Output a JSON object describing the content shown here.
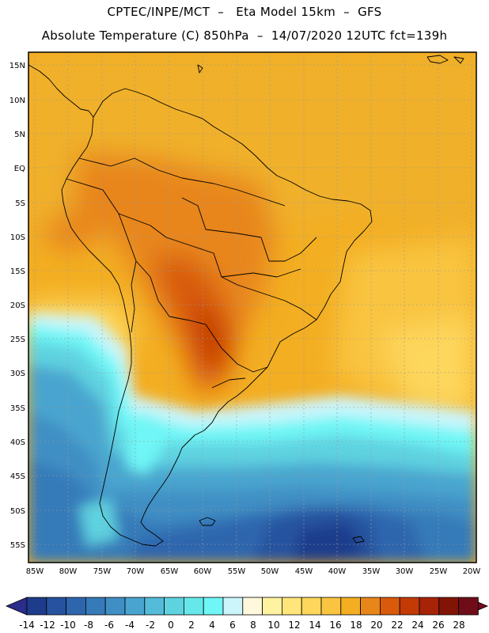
{
  "header": {
    "line1": "CPTEC/INPE/MCT  –   Eta Model 15km  –  GFS",
    "line2": "Absolute Temperature (C) 850hPa  –  14/07/2020 12UTC fct=139h"
  },
  "axes": {
    "lat_labels": [
      "15N",
      "10N",
      "5N",
      "EQ",
      "5S",
      "10S",
      "15S",
      "20S",
      "25S",
      "30S",
      "35S",
      "40S",
      "45S",
      "50S",
      "55S"
    ],
    "lon_labels": [
      "85W",
      "80W",
      "75W",
      "70W",
      "65W",
      "60W",
      "55W",
      "50W",
      "45W",
      "40W",
      "35W",
      "30W",
      "25W",
      "20W"
    ]
  },
  "colorbar": {
    "labels": [
      "-14",
      "-12",
      "-10",
      "-8",
      "-6",
      "-4",
      "-2",
      "0",
      "2",
      "4",
      "6",
      "8",
      "10",
      "12",
      "14",
      "16",
      "18",
      "20",
      "22",
      "24",
      "26",
      "28"
    ],
    "colors": [
      "#1e3c8c",
      "#27529f",
      "#2e66ae",
      "#367ab9",
      "#3f8fc4",
      "#49a5cf",
      "#54bbd8",
      "#5fd2e0",
      "#66e8ea",
      "#6ff6f6",
      "#ccf5fb",
      "#fff8dc",
      "#fff2a0",
      "#ffe57a",
      "#fdd65b",
      "#f9c43f",
      "#f3ae22",
      "#e8861a",
      "#d85a0a",
      "#c33a05",
      "#a62308",
      "#821406",
      "#6e0d18"
    ],
    "min_color": "#2a2d8a",
    "max_color": "#7a0a20"
  },
  "colors": {
    "land_border": "#000000",
    "grid": "#9a9a9a",
    "frame": "#000000"
  }
}
